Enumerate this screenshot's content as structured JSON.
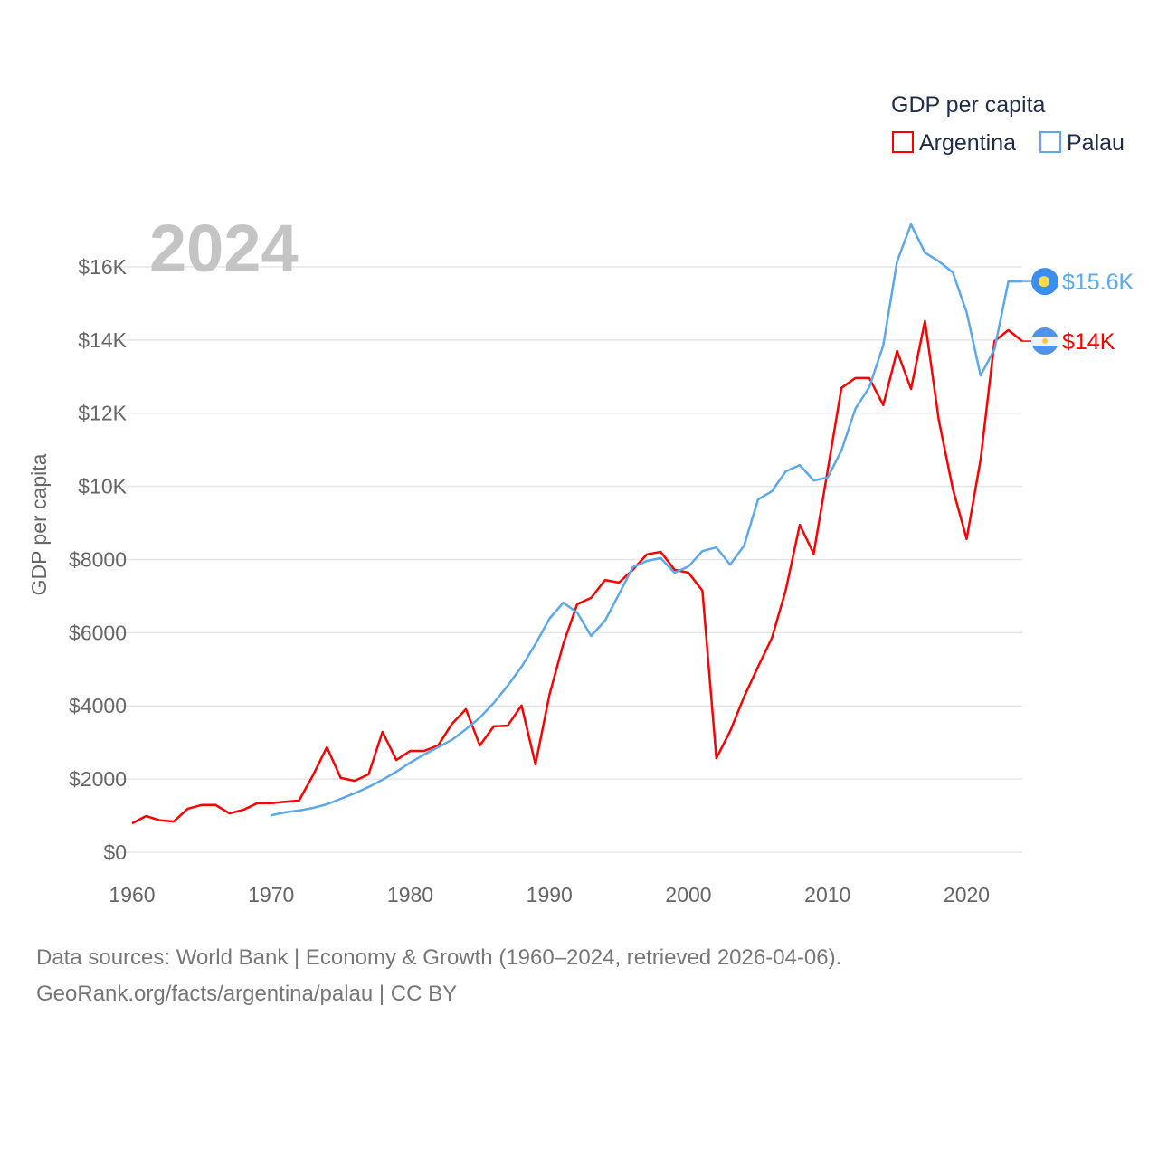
{
  "chart_data": {
    "type": "line",
    "title": "GDP per capita",
    "year_label": "2024",
    "ylabel": "GDP per capita",
    "xlabel": "",
    "xlim": [
      1960,
      2024
    ],
    "ylim": [
      0,
      17500
    ],
    "x_ticks": [
      1960,
      1970,
      1980,
      1990,
      2000,
      2010,
      2020
    ],
    "y_ticks": [
      0,
      2000,
      4000,
      6000,
      8000,
      10000,
      12000,
      14000,
      16000
    ],
    "y_tick_labels": [
      "$0",
      "$2000",
      "$4000",
      "$6000",
      "$8000",
      "$10K",
      "$12K",
      "$14K",
      "$16K"
    ],
    "grid": true,
    "legend_placement": "top-right",
    "series": [
      {
        "name": "Argentina",
        "color": "#ff0000",
        "end_label": "$14K",
        "start_year": 1960,
        "values": [
          790,
          990,
          870,
          840,
          1190,
          1290,
          1290,
          1060,
          1160,
          1340,
          1340,
          1380,
          1410,
          2100,
          2870,
          2030,
          1950,
          2130,
          3290,
          2520,
          2770,
          2770,
          2920,
          3510,
          3910,
          2920,
          3440,
          3460,
          4010,
          2400,
          4300,
          5690,
          6780,
          6950,
          7440,
          7370,
          7720,
          8140,
          8210,
          7720,
          7640,
          7150,
          2570,
          3310,
          4250,
          5070,
          5860,
          7170,
          8950,
          8160,
          10430,
          12690,
          12960,
          12960,
          12220,
          13700,
          12660,
          14520,
          11800,
          9940,
          8560,
          10730,
          13970,
          14270,
          13970
        ]
      },
      {
        "name": "Palau",
        "color": "#5ba8ec",
        "end_label": "$15.6K",
        "start_year": 1970,
        "values": [
          1010,
          1090,
          1140,
          1210,
          1310,
          1460,
          1610,
          1780,
          1980,
          2200,
          2450,
          2670,
          2870,
          3070,
          3360,
          3680,
          4080,
          4550,
          5070,
          5690,
          6380,
          6820,
          6550,
          5910,
          6330,
          7050,
          7790,
          7960,
          8040,
          7640,
          7810,
          8230,
          8330,
          7860,
          8380,
          9640,
          9870,
          10410,
          10580,
          10160,
          10240,
          10980,
          12120,
          12710,
          13850,
          16150,
          17160,
          16390,
          16150,
          15850,
          14760,
          13030,
          13750,
          15600,
          15600
        ]
      }
    ]
  },
  "footer": {
    "line1": "Data sources: World Bank | Economy & Growth (1960–2024, retrieved 2026-04-06).",
    "line2": "GeoRank.org/facts/argentina/palau | CC BY"
  }
}
